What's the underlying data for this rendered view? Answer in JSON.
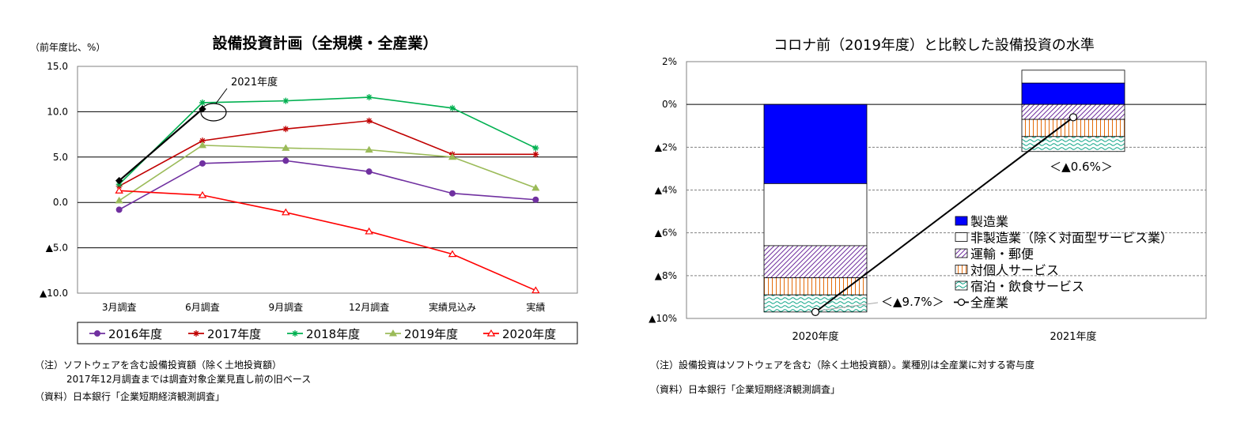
{
  "left": {
    "title": "設備投資計画（全規模・全産業）",
    "unit": "（前年度比、%）",
    "annotation": "2021年度",
    "chart_data": {
      "type": "line",
      "categories": [
        "3月調査",
        "6月調査",
        "9月調査",
        "12月調査",
        "実績見込み",
        "実績"
      ],
      "ylim": [
        -10,
        15
      ],
      "yticks": [
        {
          "v": 15,
          "label": "15.0"
        },
        {
          "v": 10,
          "label": "10.0"
        },
        {
          "v": 5,
          "label": "5.0"
        },
        {
          "v": 0,
          "label": "0.0"
        },
        {
          "v": -5,
          "label": "▲5.0"
        },
        {
          "v": -10,
          "label": "▲10.0"
        }
      ],
      "grid": true,
      "legend": "bottom",
      "series": [
        {
          "name": "2016年度",
          "color": "#7030a0",
          "marker": "circle",
          "values": [
            -0.8,
            4.3,
            4.6,
            3.4,
            1.0,
            0.3
          ]
        },
        {
          "name": "2017年度",
          "color": "#c00000",
          "marker": "star",
          "values": [
            1.8,
            6.8,
            8.1,
            9.0,
            5.3,
            5.3
          ]
        },
        {
          "name": "2018年度",
          "color": "#00b050",
          "marker": "star",
          "values": [
            2.0,
            11.0,
            11.2,
            11.6,
            10.4,
            6.0
          ]
        },
        {
          "name": "2019年度",
          "color": "#9bbb59",
          "marker": "triangle",
          "values": [
            0.2,
            6.3,
            6.0,
            5.8,
            5.0,
            1.6
          ]
        },
        {
          "name": "2020年度",
          "color": "#ff0000",
          "marker": "triangle-open",
          "values": [
            1.3,
            0.8,
            -1.1,
            -3.2,
            -5.7,
            -9.7
          ]
        },
        {
          "name": "2021年度",
          "color": "#000000",
          "marker": "diamond",
          "values": [
            2.4,
            10.3,
            null,
            null,
            null,
            null
          ]
        }
      ]
    },
    "notes": [
      "（注）ソフトウェアを含む設備投資額（除く土地投資額）",
      "2017年12月調査までは調査対象企業見直し前の旧ベース",
      "（資料）日本銀行「企業短期経済観測調査」"
    ]
  },
  "right": {
    "title": "コロナ前（2019年度）と比較した設備投資の水準",
    "chart_data": {
      "type": "bar",
      "stacked": true,
      "categories": [
        "2020年度",
        "2021年度"
      ],
      "ylim": [
        -10,
        2
      ],
      "yticks": [
        {
          "v": 2,
          "label": "2%"
        },
        {
          "v": 0,
          "label": "0%"
        },
        {
          "v": -2,
          "label": "▲2%"
        },
        {
          "v": -4,
          "label": "▲4%"
        },
        {
          "v": -6,
          "label": "▲6%"
        },
        {
          "v": -8,
          "label": "▲8%"
        },
        {
          "v": -10,
          "label": "▲10%"
        }
      ],
      "series": [
        {
          "name": "製造業",
          "color": "#0000ff",
          "pattern": "solid",
          "values": [
            -3.7,
            1.0
          ]
        },
        {
          "name": "非製造業（除く対面型サービス業）",
          "color": "#ffffff",
          "pattern": "solid",
          "values": [
            -2.9,
            0.6
          ]
        },
        {
          "name": "運輸・郵便",
          "color": "#7030a0",
          "pattern": "diag",
          "values": [
            -1.5,
            -0.7
          ]
        },
        {
          "name": "対個人サービス",
          "color": "#e46c0a",
          "pattern": "vert",
          "values": [
            -0.8,
            -0.8
          ]
        },
        {
          "name": "宿泊・飲食サービス",
          "color": "#00a080",
          "pattern": "wave",
          "values": [
            -0.8,
            -0.7
          ]
        }
      ],
      "total": {
        "name": "全産業",
        "values": [
          -9.7,
          -0.6
        ],
        "labels": [
          "＜▲9.7%＞",
          "＜▲0.6%＞"
        ]
      },
      "legend": "inside-right"
    },
    "notes": [
      "（注）設備投資はソフトウェアを含む（除く土地投資額）。業種別は全産業に対する寄与度",
      "（資料）日本銀行「企業短期経済観測調査」"
    ]
  }
}
